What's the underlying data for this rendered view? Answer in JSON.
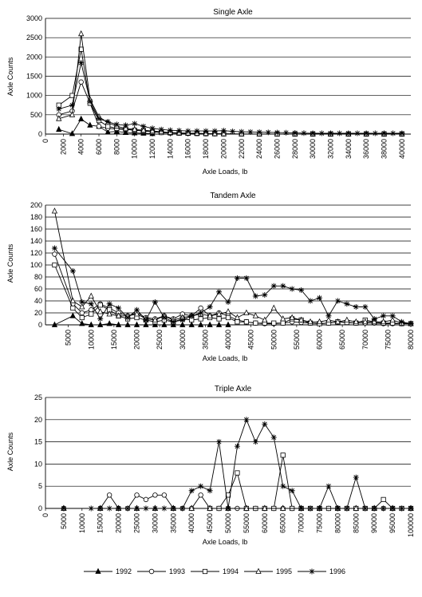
{
  "figure": {
    "legend": [
      {
        "name": "1992",
        "marker": "filled-triangle"
      },
      {
        "name": "1993",
        "marker": "circle"
      },
      {
        "name": "1994",
        "marker": "square"
      },
      {
        "name": "1995",
        "marker": "triangle"
      },
      {
        "name": "1996",
        "marker": "star"
      }
    ]
  },
  "chart_data": [
    {
      "type": "line",
      "title": "Single Axle",
      "xlabel": "Axle Loads, lb",
      "ylabel": "Axle Counts",
      "ylim": [
        0,
        3000
      ],
      "yticks": [
        0,
        500,
        1000,
        1500,
        2000,
        2500,
        3000
      ],
      "xlim": [
        0,
        41000
      ],
      "xticks": [
        0,
        2000,
        4000,
        6000,
        8000,
        10000,
        12000,
        14000,
        16000,
        18000,
        20000,
        22000,
        24000,
        26000,
        28000,
        30000,
        32000,
        34000,
        36000,
        38000,
        40000
      ],
      "grid": "horizontal",
      "series": [
        {
          "name": "1992",
          "x": [
            1500,
            3000,
            4000,
            5000,
            6000,
            7000,
            8000,
            9000,
            10000,
            11000,
            12000
          ],
          "values": [
            120,
            10,
            390,
            230,
            200,
            50,
            70,
            40,
            30,
            20,
            10
          ]
        },
        {
          "name": "1993",
          "x": [
            1500,
            3000,
            4000,
            5000,
            6000,
            7000,
            8000,
            9000,
            10000,
            11000,
            12000,
            13000,
            14000,
            15000,
            16000,
            17000,
            18000,
            19000,
            20000,
            22000,
            24000,
            26000,
            28000,
            30000,
            32000,
            34000,
            36000,
            38000,
            40000
          ],
          "values": [
            500,
            600,
            1350,
            800,
            200,
            150,
            130,
            120,
            100,
            80,
            60,
            40,
            30,
            25,
            20,
            15,
            10,
            8,
            5,
            3,
            2,
            2,
            1,
            1,
            1,
            1,
            1,
            1,
            1
          ]
        },
        {
          "name": "1994",
          "x": [
            1500,
            3000,
            4000,
            5000,
            6000,
            7000,
            8000,
            9000,
            10000,
            11000,
            12000,
            13000,
            14000,
            15000,
            16000,
            17000,
            18000,
            19000,
            20000,
            22000,
            24000,
            26000,
            28000,
            30000,
            32000,
            34000,
            36000,
            38000,
            40000
          ],
          "values": [
            750,
            1000,
            2200,
            800,
            350,
            200,
            150,
            130,
            100,
            80,
            60,
            40,
            30,
            25,
            20,
            15,
            10,
            8,
            5,
            3,
            2,
            2,
            1,
            1,
            1,
            1,
            1,
            1,
            1
          ]
        },
        {
          "name": "1995",
          "x": [
            1500,
            3000,
            4000,
            5000,
            6000,
            7000,
            8000,
            9000,
            10000,
            11000,
            12000,
            13000,
            14000,
            15000,
            16000,
            17000,
            18000,
            19000,
            20000,
            22000,
            24000,
            26000,
            28000,
            30000,
            32000,
            34000,
            36000,
            38000,
            40000
          ],
          "values": [
            400,
            500,
            2600,
            900,
            450,
            300,
            200,
            150,
            120,
            100,
            80,
            60,
            40,
            30,
            25,
            20,
            15,
            10,
            8,
            5,
            4,
            3,
            2,
            2,
            1,
            1,
            1,
            1,
            1
          ]
        },
        {
          "name": "1996",
          "x": [
            1500,
            3000,
            4000,
            5000,
            6000,
            7000,
            8000,
            9000,
            10000,
            11000,
            12000,
            13000,
            14000,
            15000,
            16000,
            17000,
            18000,
            19000,
            20000,
            21000,
            22000,
            23000,
            24000,
            25000,
            26000,
            27000,
            28000,
            29000,
            30000,
            31000,
            32000,
            33000,
            34000,
            35000,
            36000,
            37000,
            38000,
            39000,
            40000
          ],
          "values": [
            650,
            750,
            1850,
            850,
            400,
            320,
            250,
            230,
            270,
            200,
            150,
            120,
            100,
            90,
            80,
            80,
            80,
            80,
            90,
            70,
            60,
            55,
            50,
            45,
            40,
            35,
            30,
            25,
            20,
            20,
            20,
            20,
            20,
            20,
            20,
            20,
            20,
            20,
            20
          ]
        }
      ]
    },
    {
      "type": "line",
      "title": "Tandem Axle",
      "xlabel": "Axle Loads, lb",
      "ylabel": "Axle Counts",
      "ylim": [
        0,
        200
      ],
      "yticks": [
        0,
        20,
        40,
        60,
        80,
        100,
        120,
        140,
        160,
        180,
        200
      ],
      "xlim": [
        0,
        80000
      ],
      "xticks": [
        5000,
        10000,
        15000,
        20000,
        25000,
        30000,
        35000,
        40000,
        45000,
        50000,
        55000,
        60000,
        65000,
        70000,
        75000,
        80000
      ],
      "grid": "horizontal",
      "series": [
        {
          "name": "1992",
          "x": [
            2000,
            6000,
            8000,
            10000,
            12000,
            14000,
            16000,
            18000,
            20000,
            22000,
            24000,
            26000,
            28000,
            30000,
            32000,
            34000,
            36000,
            38000,
            40000
          ],
          "values": [
            0,
            15,
            2,
            0,
            0,
            2,
            0,
            0,
            0,
            0,
            0,
            0,
            0,
            0,
            0,
            0,
            0,
            0,
            0
          ]
        },
        {
          "name": "1993",
          "x": [
            2000,
            6000,
            8000,
            10000,
            12000,
            14000,
            16000,
            18000,
            20000,
            22000,
            24000,
            26000,
            28000,
            30000,
            32000,
            34000,
            36000,
            38000,
            40000,
            42000,
            44000,
            46000,
            48000,
            50000,
            52000,
            54000,
            56000,
            58000,
            60000,
            62000,
            64000,
            66000,
            68000,
            70000,
            72000,
            74000,
            76000,
            78000,
            80000
          ],
          "values": [
            118,
            35,
            20,
            25,
            35,
            28,
            20,
            15,
            20,
            12,
            10,
            15,
            10,
            18,
            15,
            28,
            15,
            20,
            15,
            8,
            5,
            3,
            2,
            2,
            3,
            5,
            4,
            3,
            2,
            3,
            5,
            4,
            3,
            3,
            3,
            2,
            2,
            2,
            2
          ]
        },
        {
          "name": "1994",
          "x": [
            2000,
            6000,
            8000,
            10000,
            12000,
            14000,
            16000,
            18000,
            20000,
            22000,
            24000,
            26000,
            28000,
            30000,
            32000,
            34000,
            36000,
            38000,
            40000,
            42000,
            44000,
            46000,
            48000,
            50000,
            52000,
            54000,
            56000,
            58000,
            60000,
            62000,
            64000,
            66000,
            68000,
            70000,
            72000,
            74000,
            76000,
            78000,
            80000
          ],
          "values": [
            100,
            28,
            12,
            18,
            33,
            25,
            15,
            10,
            12,
            8,
            5,
            8,
            5,
            10,
            8,
            10,
            12,
            10,
            12,
            5,
            5,
            3,
            3,
            3,
            3,
            10,
            8,
            3,
            2,
            3,
            5,
            4,
            3,
            8,
            5,
            3,
            3,
            2,
            2
          ]
        },
        {
          "name": "1995",
          "x": [
            2000,
            6000,
            8000,
            10000,
            12000,
            14000,
            16000,
            18000,
            20000,
            22000,
            24000,
            26000,
            28000,
            30000,
            32000,
            34000,
            36000,
            38000,
            40000,
            42000,
            44000,
            46000,
            48000,
            50000,
            52000,
            54000,
            56000,
            58000,
            60000,
            62000,
            64000,
            66000,
            68000,
            70000,
            72000,
            74000,
            76000,
            78000,
            80000
          ],
          "values": [
            190,
            40,
            30,
            48,
            22,
            18,
            15,
            15,
            18,
            10,
            8,
            15,
            8,
            12,
            15,
            18,
            15,
            18,
            22,
            12,
            20,
            15,
            8,
            28,
            10,
            12,
            8,
            5,
            5,
            8,
            5,
            8,
            5,
            5,
            5,
            5,
            8,
            3,
            2
          ]
        },
        {
          "name": "1996",
          "x": [
            2000,
            6000,
            8000,
            10000,
            12000,
            14000,
            16000,
            18000,
            20000,
            22000,
            24000,
            26000,
            28000,
            30000,
            32000,
            34000,
            36000,
            38000,
            40000,
            42000,
            44000,
            46000,
            48000,
            50000,
            52000,
            54000,
            56000,
            58000,
            60000,
            62000,
            64000,
            66000,
            68000,
            70000,
            72000,
            74000,
            76000,
            78000,
            80000
          ],
          "values": [
            128,
            90,
            38,
            35,
            10,
            35,
            28,
            12,
            25,
            8,
            38,
            12,
            5,
            8,
            15,
            20,
            30,
            55,
            38,
            78,
            78,
            48,
            50,
            65,
            65,
            60,
            58,
            40,
            45,
            15,
            40,
            35,
            30,
            30,
            10,
            15,
            15,
            5,
            2
          ]
        }
      ]
    },
    {
      "type": "line",
      "title": "Triple Axle",
      "xlabel": "Axle Loads, lb",
      "ylabel": "Axle Counts",
      "ylim": [
        0,
        25
      ],
      "yticks": [
        0,
        5,
        10,
        15,
        20,
        25
      ],
      "xlim": [
        0,
        100000
      ],
      "xticks": [
        0,
        5000,
        10000,
        15000,
        20000,
        25000,
        30000,
        35000,
        40000,
        45000,
        50000,
        55000,
        60000,
        65000,
        70000,
        75000,
        80000,
        85000,
        90000,
        95000,
        100000
      ],
      "grid": "horizontal",
      "series": [
        {
          "name": "1992",
          "x": [
            5000,
            15000,
            20000,
            25000,
            30000,
            35000,
            40000,
            45000,
            50000,
            55000,
            60000,
            65000,
            70000,
            75000,
            80000,
            85000,
            90000,
            95000,
            100000
          ],
          "values": [
            0,
            0,
            0,
            0,
            0,
            0,
            0,
            0,
            0,
            0,
            0,
            0,
            0,
            0,
            0,
            0,
            0,
            0,
            0
          ]
        },
        {
          "name": "1993",
          "x": [
            5000,
            15000,
            17500,
            20000,
            22500,
            25000,
            27500,
            30000,
            32500,
            35000,
            37500,
            40000,
            42500,
            45000,
            47500,
            50000,
            52500,
            55000,
            57500,
            60000,
            62500,
            65000,
            67500,
            70000,
            72500,
            75000,
            77500,
            80000,
            82500,
            85000,
            87500,
            90000,
            92500,
            95000,
            97500,
            100000
          ],
          "values": [
            0,
            0,
            3,
            0,
            0,
            3,
            2,
            3,
            3,
            0,
            0,
            0,
            3,
            0,
            0,
            0,
            0,
            0,
            0,
            0,
            0,
            0,
            0,
            0,
            0,
            0,
            0,
            0,
            0,
            0,
            0,
            0,
            0,
            0,
            0,
            0
          ]
        },
        {
          "name": "1994",
          "x": [
            45000,
            47500,
            50000,
            52500,
            55000,
            57500,
            60000,
            62500,
            65000,
            67500,
            70000,
            72500,
            75000,
            77500,
            80000,
            82500,
            85000,
            87500,
            90000,
            92500,
            95000,
            97500,
            100000
          ],
          "values": [
            0,
            0,
            3,
            8,
            0,
            0,
            0,
            0,
            12,
            0,
            0,
            0,
            0,
            0,
            0,
            0,
            0,
            0,
            0,
            2,
            0,
            0,
            0
          ]
        },
        {
          "name": "1995",
          "x": [
            5000,
            15000,
            20000,
            25000,
            30000,
            35000,
            40000,
            45000,
            50000,
            55000,
            60000,
            65000,
            70000,
            75000,
            80000,
            85000,
            90000,
            95000,
            100000
          ],
          "values": [
            0,
            0,
            0,
            0,
            0,
            0,
            0,
            0,
            0,
            0,
            0,
            0,
            0,
            0,
            0,
            0,
            0,
            0,
            0
          ]
        },
        {
          "name": "1996",
          "x": [
            5000,
            12500,
            15000,
            17500,
            20000,
            22500,
            25000,
            27500,
            30000,
            32500,
            35000,
            37500,
            40000,
            42500,
            45000,
            47500,
            50000,
            52500,
            55000,
            57500,
            60000,
            62500,
            65000,
            67500,
            70000,
            72500,
            75000,
            77500,
            80000,
            82500,
            85000,
            87500,
            90000,
            92500,
            95000,
            97500,
            100000
          ],
          "values": [
            0,
            0,
            0,
            0,
            0,
            0,
            0,
            0,
            0,
            0,
            0,
            0,
            4,
            5,
            4,
            15,
            0,
            14,
            20,
            15,
            19,
            16,
            5,
            4,
            0,
            0,
            0,
            5,
            0,
            0,
            7,
            0,
            0,
            0,
            0,
            0,
            0
          ]
        }
      ]
    }
  ]
}
